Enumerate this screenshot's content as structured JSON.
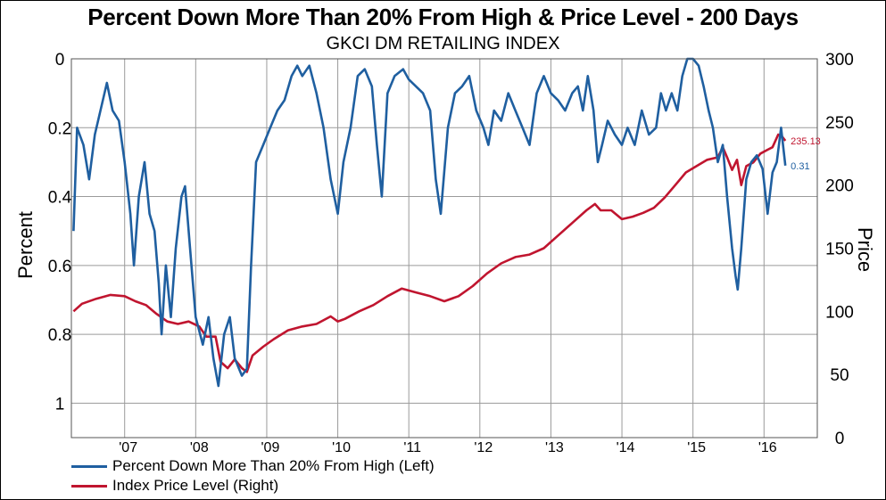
{
  "chart_data": {
    "type": "line",
    "title": "Percent Down More Than 20% From High & Price Level - 200 Days",
    "subtitle": "GKCI DM RETAILING INDEX",
    "ylabel_left": "Percent",
    "ylabel_right": "Price",
    "x_ticks": [
      "'07",
      "'08",
      "'09",
      "'10",
      "'11",
      "'12",
      "'13",
      "'14",
      "'15",
      "'16"
    ],
    "left_axis": {
      "range": [
        0,
        1.1
      ],
      "inverted": true,
      "ticks": [
        "0",
        "0.2",
        "0.4",
        "0.6",
        "0.8",
        "1"
      ],
      "tick_values": [
        0,
        0.2,
        0.4,
        0.6,
        0.8,
        1
      ]
    },
    "right_axis": {
      "range": [
        0,
        300
      ],
      "ticks": [
        "0",
        "50",
        "100",
        "150",
        "200",
        "250",
        "300"
      ],
      "tick_values": [
        0,
        50,
        100,
        150,
        200,
        250,
        300
      ]
    },
    "x_range": [
      2006.25,
      2016.75
    ],
    "grid": true,
    "legend_position": "bottom-left",
    "series": [
      {
        "name": "Percent Down More Than 20% From High (Left)",
        "axis": "left",
        "color": "#1f5fa0",
        "end_label": "0.31",
        "points": [
          [
            2006.28,
            0.5
          ],
          [
            2006.33,
            0.2
          ],
          [
            2006.42,
            0.25
          ],
          [
            2006.5,
            0.35
          ],
          [
            2006.58,
            0.22
          ],
          [
            2006.66,
            0.15
          ],
          [
            2006.75,
            0.07
          ],
          [
            2006.83,
            0.15
          ],
          [
            2006.92,
            0.18
          ],
          [
            2007.0,
            0.3
          ],
          [
            2007.08,
            0.45
          ],
          [
            2007.13,
            0.6
          ],
          [
            2007.2,
            0.4
          ],
          [
            2007.28,
            0.3
          ],
          [
            2007.35,
            0.45
          ],
          [
            2007.42,
            0.5
          ],
          [
            2007.48,
            0.65
          ],
          [
            2007.52,
            0.8
          ],
          [
            2007.58,
            0.6
          ],
          [
            2007.65,
            0.75
          ],
          [
            2007.72,
            0.55
          ],
          [
            2007.8,
            0.4
          ],
          [
            2007.85,
            0.37
          ],
          [
            2007.92,
            0.55
          ],
          [
            2008.0,
            0.75
          ],
          [
            2008.1,
            0.83
          ],
          [
            2008.18,
            0.75
          ],
          [
            2008.25,
            0.87
          ],
          [
            2008.32,
            0.95
          ],
          [
            2008.4,
            0.8
          ],
          [
            2008.48,
            0.75
          ],
          [
            2008.55,
            0.87
          ],
          [
            2008.65,
            0.92
          ],
          [
            2008.72,
            0.9
          ],
          [
            2008.78,
            0.6
          ],
          [
            2008.85,
            0.3
          ],
          [
            2008.95,
            0.25
          ],
          [
            2009.05,
            0.2
          ],
          [
            2009.15,
            0.15
          ],
          [
            2009.25,
            0.12
          ],
          [
            2009.35,
            0.05
          ],
          [
            2009.43,
            0.02
          ],
          [
            2009.5,
            0.05
          ],
          [
            2009.6,
            0.02
          ],
          [
            2009.7,
            0.1
          ],
          [
            2009.8,
            0.2
          ],
          [
            2009.9,
            0.35
          ],
          [
            2010.0,
            0.45
          ],
          [
            2010.08,
            0.3
          ],
          [
            2010.18,
            0.2
          ],
          [
            2010.28,
            0.05
          ],
          [
            2010.38,
            0.03
          ],
          [
            2010.48,
            0.08
          ],
          [
            2010.55,
            0.25
          ],
          [
            2010.62,
            0.4
          ],
          [
            2010.7,
            0.1
          ],
          [
            2010.8,
            0.05
          ],
          [
            2010.92,
            0.03
          ],
          [
            2011.0,
            0.06
          ],
          [
            2011.1,
            0.08
          ],
          [
            2011.2,
            0.1
          ],
          [
            2011.3,
            0.15
          ],
          [
            2011.38,
            0.35
          ],
          [
            2011.45,
            0.45
          ],
          [
            2011.55,
            0.2
          ],
          [
            2011.65,
            0.1
          ],
          [
            2011.75,
            0.08
          ],
          [
            2011.85,
            0.05
          ],
          [
            2011.95,
            0.15
          ],
          [
            2012.05,
            0.2
          ],
          [
            2012.12,
            0.25
          ],
          [
            2012.2,
            0.15
          ],
          [
            2012.3,
            0.18
          ],
          [
            2012.4,
            0.1
          ],
          [
            2012.5,
            0.15
          ],
          [
            2012.6,
            0.2
          ],
          [
            2012.7,
            0.25
          ],
          [
            2012.8,
            0.1
          ],
          [
            2012.9,
            0.05
          ],
          [
            2013.0,
            0.1
          ],
          [
            2013.1,
            0.12
          ],
          [
            2013.2,
            0.15
          ],
          [
            2013.3,
            0.1
          ],
          [
            2013.38,
            0.08
          ],
          [
            2013.45,
            0.15
          ],
          [
            2013.52,
            0.05
          ],
          [
            2013.6,
            0.15
          ],
          [
            2013.66,
            0.3
          ],
          [
            2013.72,
            0.25
          ],
          [
            2013.8,
            0.18
          ],
          [
            2013.9,
            0.22
          ],
          [
            2014.0,
            0.25
          ],
          [
            2014.08,
            0.2
          ],
          [
            2014.18,
            0.25
          ],
          [
            2014.28,
            0.15
          ],
          [
            2014.38,
            0.22
          ],
          [
            2014.48,
            0.2
          ],
          [
            2014.55,
            0.1
          ],
          [
            2014.62,
            0.15
          ],
          [
            2014.7,
            0.1
          ],
          [
            2014.78,
            0.15
          ],
          [
            2014.85,
            0.05
          ],
          [
            2014.92,
            0.0
          ],
          [
            2015.0,
            0.0
          ],
          [
            2015.08,
            0.02
          ],
          [
            2015.15,
            0.08
          ],
          [
            2015.22,
            0.15
          ],
          [
            2015.28,
            0.2
          ],
          [
            2015.35,
            0.3
          ],
          [
            2015.42,
            0.25
          ],
          [
            2015.48,
            0.4
          ],
          [
            2015.55,
            0.55
          ],
          [
            2015.6,
            0.63
          ],
          [
            2015.63,
            0.67
          ],
          [
            2015.68,
            0.55
          ],
          [
            2015.75,
            0.35
          ],
          [
            2015.82,
            0.3
          ],
          [
            2015.9,
            0.28
          ],
          [
            2015.98,
            0.32
          ],
          [
            2016.05,
            0.45
          ],
          [
            2016.12,
            0.33
          ],
          [
            2016.18,
            0.3
          ],
          [
            2016.24,
            0.2
          ],
          [
            2016.3,
            0.31
          ]
        ]
      },
      {
        "name": "Index Price Level (Right)",
        "axis": "right",
        "color": "#c0152f",
        "end_label": "235.13",
        "points": [
          [
            2006.28,
            100
          ],
          [
            2006.4,
            106
          ],
          [
            2006.6,
            110
          ],
          [
            2006.8,
            113
          ],
          [
            2007.0,
            112
          ],
          [
            2007.15,
            108
          ],
          [
            2007.3,
            105
          ],
          [
            2007.45,
            98
          ],
          [
            2007.6,
            92
          ],
          [
            2007.75,
            90
          ],
          [
            2007.9,
            92
          ],
          [
            2008.05,
            88
          ],
          [
            2008.15,
            80
          ],
          [
            2008.28,
            80
          ],
          [
            2008.35,
            60
          ],
          [
            2008.45,
            55
          ],
          [
            2008.55,
            62
          ],
          [
            2008.65,
            55
          ],
          [
            2008.72,
            52
          ],
          [
            2008.8,
            65
          ],
          [
            2008.95,
            72
          ],
          [
            2009.1,
            78
          ],
          [
            2009.3,
            85
          ],
          [
            2009.5,
            88
          ],
          [
            2009.7,
            90
          ],
          [
            2009.9,
            96
          ],
          [
            2010.0,
            92
          ],
          [
            2010.1,
            94
          ],
          [
            2010.3,
            100
          ],
          [
            2010.5,
            105
          ],
          [
            2010.7,
            112
          ],
          [
            2010.9,
            118
          ],
          [
            2011.1,
            115
          ],
          [
            2011.3,
            112
          ],
          [
            2011.5,
            108
          ],
          [
            2011.7,
            112
          ],
          [
            2011.9,
            120
          ],
          [
            2012.1,
            130
          ],
          [
            2012.3,
            138
          ],
          [
            2012.5,
            143
          ],
          [
            2012.7,
            145
          ],
          [
            2012.9,
            150
          ],
          [
            2013.1,
            160
          ],
          [
            2013.3,
            170
          ],
          [
            2013.5,
            180
          ],
          [
            2013.62,
            185
          ],
          [
            2013.7,
            180
          ],
          [
            2013.85,
            180
          ],
          [
            2014.0,
            173
          ],
          [
            2014.15,
            175
          ],
          [
            2014.3,
            178
          ],
          [
            2014.45,
            182
          ],
          [
            2014.6,
            190
          ],
          [
            2014.75,
            200
          ],
          [
            2014.9,
            210
          ],
          [
            2015.05,
            215
          ],
          [
            2015.2,
            220
          ],
          [
            2015.35,
            222
          ],
          [
            2015.42,
            230
          ],
          [
            2015.48,
            222
          ],
          [
            2015.55,
            212
          ],
          [
            2015.62,
            220
          ],
          [
            2015.68,
            200
          ],
          [
            2015.75,
            215
          ],
          [
            2015.85,
            218
          ],
          [
            2015.95,
            225
          ],
          [
            2016.05,
            228
          ],
          [
            2016.12,
            230
          ],
          [
            2016.2,
            240
          ],
          [
            2016.26,
            238
          ],
          [
            2016.3,
            235.13
          ]
        ]
      }
    ]
  }
}
